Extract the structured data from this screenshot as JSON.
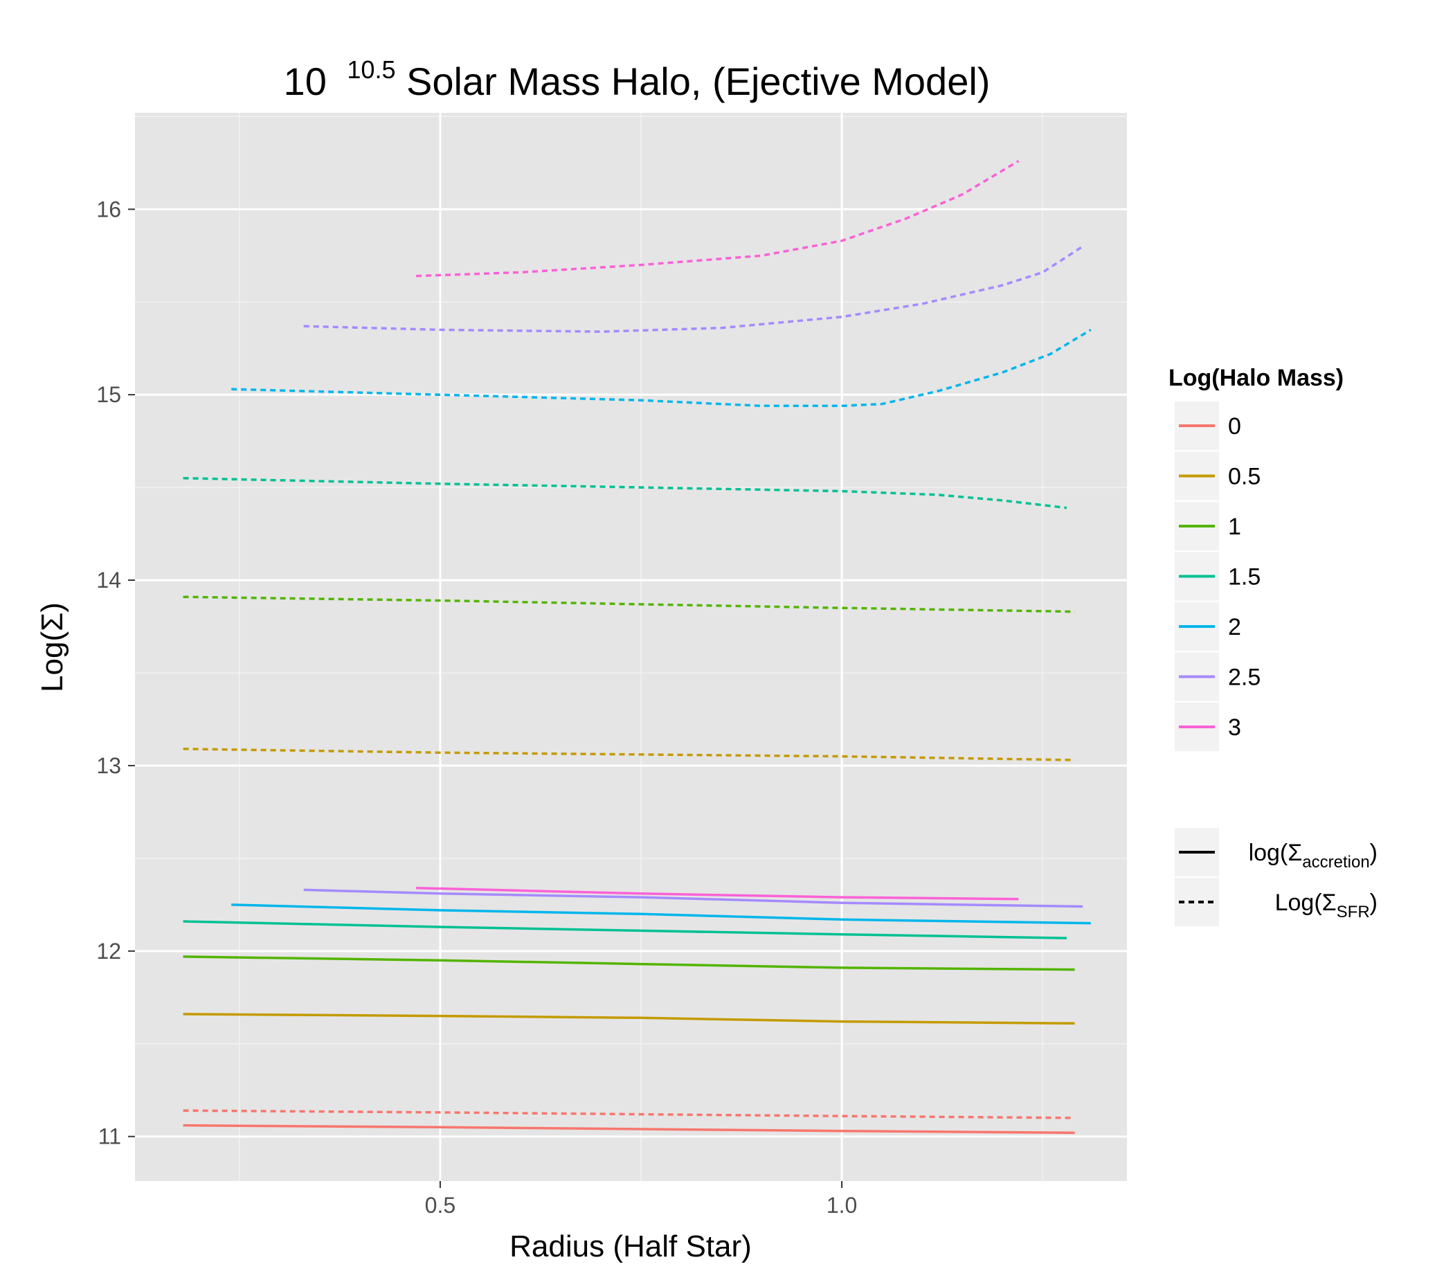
{
  "chart_data": {
    "type": "line",
    "title": {
      "base": "10",
      "exponent": "10.5",
      "rest": " Solar Mass Halo, (Ejective Model)"
    },
    "xlabel": "Radius (Half Star)",
    "ylabel": "Log(Σ)",
    "xlim": [
      0.12,
      1.355
    ],
    "ylim": [
      10.76,
      16.52
    ],
    "x_ticks": [
      0.5,
      1.0
    ],
    "x_tick_labels": [
      "0.5",
      "1.0"
    ],
    "y_ticks": [
      11,
      12,
      13,
      14,
      15,
      16
    ],
    "y_tick_labels": [
      "11",
      "12",
      "13",
      "14",
      "15",
      "16"
    ],
    "grid": true,
    "background": "#e5e5e5",
    "legend_position": "right",
    "color_legend": {
      "title": "Log(Halo Mass)",
      "entries": [
        {
          "label": "0",
          "color": "#f8766d"
        },
        {
          "label": "0.5",
          "color": "#c49a00"
        },
        {
          "label": "1",
          "color": "#53b400"
        },
        {
          "label": "1.5",
          "color": "#00c094"
        },
        {
          "label": "2",
          "color": "#00b6eb"
        },
        {
          "label": "2.5",
          "color": "#a58aff"
        },
        {
          "label": "3",
          "color": "#fb61d7"
        }
      ]
    },
    "linetype_legend": [
      {
        "style": "solid",
        "func": "log",
        "sub": "accretion"
      },
      {
        "style": "dashed",
        "func": "Log",
        "sub": "SFR"
      }
    ],
    "series": [
      {
        "halo": "0",
        "color": "#f8766d",
        "style": "solid",
        "x": [
          0.18,
          0.5,
          0.75,
          1.0,
          1.29
        ],
        "y": [
          11.06,
          11.05,
          11.04,
          11.03,
          11.02
        ]
      },
      {
        "halo": "0.5",
        "color": "#c49a00",
        "style": "solid",
        "x": [
          0.18,
          0.5,
          0.75,
          1.0,
          1.29
        ],
        "y": [
          11.66,
          11.65,
          11.64,
          11.62,
          11.61
        ]
      },
      {
        "halo": "1",
        "color": "#53b400",
        "style": "solid",
        "x": [
          0.18,
          0.5,
          0.75,
          1.0,
          1.29
        ],
        "y": [
          11.97,
          11.95,
          11.93,
          11.91,
          11.9
        ]
      },
      {
        "halo": "1.5",
        "color": "#00c094",
        "style": "solid",
        "x": [
          0.18,
          0.5,
          0.75,
          1.0,
          1.28
        ],
        "y": [
          12.16,
          12.13,
          12.11,
          12.09,
          12.07
        ]
      },
      {
        "halo": "2",
        "color": "#00b6eb",
        "style": "solid",
        "x": [
          0.24,
          0.5,
          0.75,
          1.0,
          1.31
        ],
        "y": [
          12.25,
          12.22,
          12.2,
          12.17,
          12.15
        ]
      },
      {
        "halo": "2.5",
        "color": "#a58aff",
        "style": "solid",
        "x": [
          0.33,
          0.5,
          0.75,
          1.0,
          1.3
        ],
        "y": [
          12.33,
          12.31,
          12.29,
          12.26,
          12.24
        ]
      },
      {
        "halo": "3",
        "color": "#fb61d7",
        "style": "solid",
        "x": [
          0.47,
          0.75,
          1.0,
          1.22
        ],
        "y": [
          12.34,
          12.31,
          12.29,
          12.28
        ]
      },
      {
        "halo": "0",
        "color": "#f8766d",
        "style": "dashed",
        "x": [
          0.18,
          0.5,
          0.75,
          1.0,
          1.29
        ],
        "y": [
          11.14,
          11.13,
          11.12,
          11.11,
          11.1
        ]
      },
      {
        "halo": "0.5",
        "color": "#c49a00",
        "style": "dashed",
        "x": [
          0.18,
          0.5,
          0.75,
          1.0,
          1.29
        ],
        "y": [
          13.09,
          13.07,
          13.06,
          13.05,
          13.03
        ]
      },
      {
        "halo": "1",
        "color": "#53b400",
        "style": "dashed",
        "x": [
          0.18,
          0.5,
          0.75,
          1.0,
          1.29
        ],
        "y": [
          13.91,
          13.89,
          13.87,
          13.85,
          13.83
        ]
      },
      {
        "halo": "1.5",
        "color": "#00c094",
        "style": "dashed",
        "x": [
          0.18,
          0.5,
          0.75,
          1.0,
          1.12,
          1.2,
          1.28
        ],
        "y": [
          14.55,
          14.52,
          14.5,
          14.48,
          14.46,
          14.43,
          14.39
        ]
      },
      {
        "halo": "2",
        "color": "#00b6eb",
        "style": "dashed",
        "x": [
          0.24,
          0.5,
          0.75,
          0.9,
          1.0,
          1.05,
          1.12,
          1.2,
          1.26,
          1.31
        ],
        "y": [
          15.03,
          15.0,
          14.97,
          14.94,
          14.94,
          14.95,
          15.02,
          15.12,
          15.22,
          15.35
        ]
      },
      {
        "halo": "2.5",
        "color": "#a58aff",
        "style": "dashed",
        "x": [
          0.33,
          0.5,
          0.7,
          0.85,
          1.0,
          1.1,
          1.2,
          1.25,
          1.3
        ],
        "y": [
          15.37,
          15.35,
          15.34,
          15.36,
          15.42,
          15.49,
          15.59,
          15.66,
          15.8
        ]
      },
      {
        "halo": "3",
        "color": "#fb61d7",
        "style": "dashed",
        "x": [
          0.47,
          0.6,
          0.75,
          0.9,
          1.0,
          1.08,
          1.15,
          1.22
        ],
        "y": [
          15.64,
          15.66,
          15.7,
          15.75,
          15.83,
          15.95,
          16.08,
          16.26
        ]
      }
    ]
  }
}
